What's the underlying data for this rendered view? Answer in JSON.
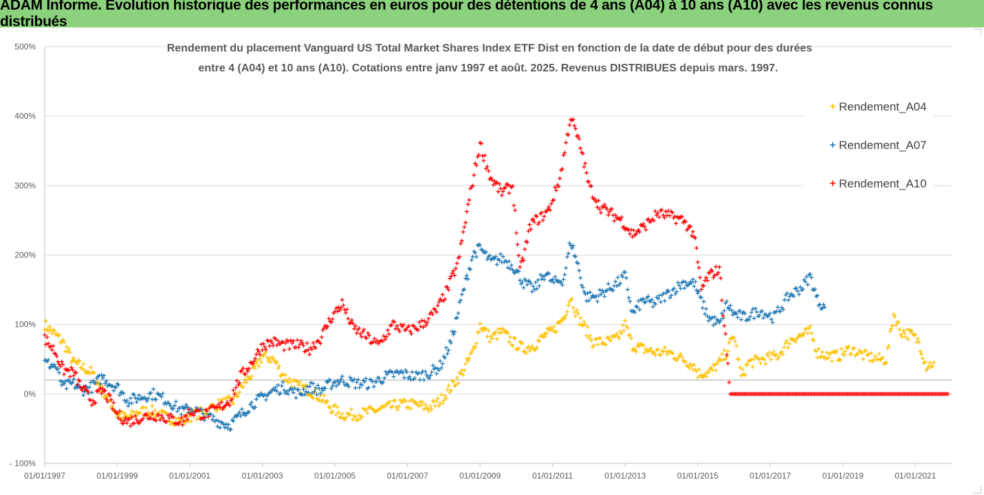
{
  "banner": {
    "title": "ADAM Informe. Evolution historique des performances en euros pour des détentions de 4 ans (A04) à 10 ans (A10) avec les revenus connus distribués"
  },
  "chart_data": {
    "type": "scatter",
    "title_lines": [
      "Rendement du placement Vanguard US Total Market Shares Index ETF Dist en fonction de la date de début pour des durées",
      "entre 4 (A04) et 10 ans (A10). Cotations entre janv 1997 et août. 2025. Revenus DISTRIBUES depuis mars. 1997."
    ],
    "y_ticks": [
      "500%",
      "400%",
      "300%",
      "200%",
      "100%",
      "0%",
      "- 100%"
    ],
    "y_tick_values": [
      500,
      400,
      300,
      200,
      100,
      0,
      -100
    ],
    "ylim": [
      -100,
      500
    ],
    "x_ticks": [
      "01/01/1997",
      "01/01/1999",
      "01/01/2001",
      "01/01/2003",
      "01/01/2005",
      "01/01/2007",
      "01/01/2009",
      "01/01/2011",
      "01/01/2013",
      "01/01/2015",
      "01/01/2017",
      "01/01/2019",
      "01/01/2021"
    ],
    "x_tick_values": [
      1997,
      1999,
      2001,
      2003,
      2005,
      2007,
      2009,
      2011,
      2013,
      2015,
      2017,
      2019,
      2021
    ],
    "xlim": [
      1997,
      2022
    ],
    "reference_line_y": 20,
    "legend_position": "top-right",
    "grid": "horizontal",
    "series": [
      {
        "name": "Rendement_A04",
        "color": "#ffc000",
        "points": [
          [
            1997.0,
            100
          ],
          [
            1997.2,
            90
          ],
          [
            1997.5,
            75
          ],
          [
            1997.8,
            45
          ],
          [
            1998.0,
            40
          ],
          [
            1998.3,
            30
          ],
          [
            1998.6,
            5
          ],
          [
            1998.8,
            -10
          ],
          [
            1999.0,
            -30
          ],
          [
            1999.3,
            -35
          ],
          [
            1999.6,
            -25
          ],
          [
            2000.0,
            -25
          ],
          [
            2000.4,
            -35
          ],
          [
            2000.8,
            -40
          ],
          [
            2001.0,
            -32
          ],
          [
            2001.4,
            -25
          ],
          [
            2001.8,
            -15
          ],
          [
            2002.2,
            -10
          ],
          [
            2002.5,
            15
          ],
          [
            2002.8,
            35
          ],
          [
            2003.0,
            55
          ],
          [
            2003.3,
            50
          ],
          [
            2003.6,
            25
          ],
          [
            2004.0,
            10
          ],
          [
            2004.3,
            5
          ],
          [
            2004.6,
            -5
          ],
          [
            2004.9,
            -20
          ],
          [
            2005.2,
            -30
          ],
          [
            2005.6,
            -30
          ],
          [
            2006.0,
            -25
          ],
          [
            2006.4,
            -20
          ],
          [
            2006.8,
            -15
          ],
          [
            2007.2,
            -15
          ],
          [
            2007.6,
            -20
          ],
          [
            2007.9,
            -10
          ],
          [
            2008.2,
            10
          ],
          [
            2008.5,
            30
          ],
          [
            2008.8,
            60
          ],
          [
            2009.0,
            100
          ],
          [
            2009.3,
            80
          ],
          [
            2009.6,
            90
          ],
          [
            2009.9,
            75
          ],
          [
            2010.2,
            65
          ],
          [
            2010.5,
            70
          ],
          [
            2010.8,
            85
          ],
          [
            2011.0,
            90
          ],
          [
            2011.3,
            110
          ],
          [
            2011.5,
            140
          ],
          [
            2011.7,
            110
          ],
          [
            2011.9,
            95
          ],
          [
            2012.1,
            75
          ],
          [
            2012.5,
            75
          ],
          [
            2012.8,
            80
          ],
          [
            2013.0,
            100
          ],
          [
            2013.2,
            70
          ],
          [
            2013.5,
            65
          ],
          [
            2013.8,
            60
          ],
          [
            2014.2,
            60
          ],
          [
            2014.6,
            50
          ],
          [
            2014.9,
            40
          ],
          [
            2015.0,
            30
          ],
          [
            2015.3,
            30
          ],
          [
            2015.6,
            45
          ],
          [
            2015.8,
            60
          ],
          [
            2016.0,
            85
          ],
          [
            2016.2,
            25
          ],
          [
            2016.4,
            45
          ],
          [
            2016.8,
            50
          ],
          [
            2017.2,
            55
          ],
          [
            2017.6,
            80
          ],
          [
            2017.9,
            85
          ],
          [
            2018.1,
            90
          ],
          [
            2018.3,
            60
          ],
          [
            2018.6,
            55
          ],
          [
            2018.9,
            55
          ],
          [
            2019.2,
            65
          ],
          [
            2019.6,
            55
          ],
          [
            2020.0,
            50
          ],
          [
            2020.2,
            50
          ],
          [
            2020.4,
            115
          ],
          [
            2020.6,
            90
          ],
          [
            2020.9,
            85
          ],
          [
            2021.1,
            75
          ],
          [
            2021.3,
            40
          ],
          [
            2021.5,
            45
          ]
        ]
      },
      {
        "name": "Rendement_A07",
        "color": "#1f77b4",
        "points": [
          [
            1997.0,
            45
          ],
          [
            1997.3,
            40
          ],
          [
            1997.5,
            10
          ],
          [
            1997.8,
            15
          ],
          [
            1998.0,
            5
          ],
          [
            1998.3,
            10
          ],
          [
            1998.6,
            25
          ],
          [
            1998.8,
            15
          ],
          [
            1999.0,
            10
          ],
          [
            1999.3,
            -10
          ],
          [
            1999.6,
            -5
          ],
          [
            2000.0,
            0
          ],
          [
            2000.4,
            -10
          ],
          [
            2000.8,
            -25
          ],
          [
            2001.0,
            -20
          ],
          [
            2001.4,
            -30
          ],
          [
            2001.8,
            -40
          ],
          [
            2002.1,
            -45
          ],
          [
            2002.4,
            -30
          ],
          [
            2002.7,
            -15
          ],
          [
            2003.0,
            -5
          ],
          [
            2003.3,
            5
          ],
          [
            2003.6,
            10
          ],
          [
            2004.0,
            0
          ],
          [
            2004.3,
            10
          ],
          [
            2004.6,
            5
          ],
          [
            2004.9,
            15
          ],
          [
            2005.2,
            20
          ],
          [
            2005.6,
            15
          ],
          [
            2006.0,
            15
          ],
          [
            2006.4,
            25
          ],
          [
            2006.8,
            30
          ],
          [
            2007.2,
            25
          ],
          [
            2007.6,
            30
          ],
          [
            2007.9,
            40
          ],
          [
            2008.2,
            75
          ],
          [
            2008.5,
            140
          ],
          [
            2008.8,
            200
          ],
          [
            2009.0,
            210
          ],
          [
            2009.3,
            190
          ],
          [
            2009.6,
            195
          ],
          [
            2009.9,
            185
          ],
          [
            2010.2,
            160
          ],
          [
            2010.5,
            150
          ],
          [
            2010.8,
            175
          ],
          [
            2011.0,
            160
          ],
          [
            2011.3,
            165
          ],
          [
            2011.5,
            220
          ],
          [
            2011.7,
            185
          ],
          [
            2011.9,
            140
          ],
          [
            2012.2,
            140
          ],
          [
            2012.5,
            150
          ],
          [
            2012.8,
            160
          ],
          [
            2013.0,
            170
          ],
          [
            2013.2,
            115
          ],
          [
            2013.5,
            135
          ],
          [
            2013.8,
            130
          ],
          [
            2014.2,
            145
          ],
          [
            2014.6,
            160
          ],
          [
            2014.9,
            160
          ],
          [
            2015.0,
            145
          ],
          [
            2015.3,
            110
          ],
          [
            2015.6,
            100
          ],
          [
            2015.8,
            130
          ],
          [
            2016.0,
            115
          ],
          [
            2016.3,
            110
          ],
          [
            2016.7,
            120
          ],
          [
            2017.1,
            110
          ],
          [
            2017.5,
            140
          ],
          [
            2017.9,
            155
          ],
          [
            2018.1,
            170
          ],
          [
            2018.3,
            135
          ],
          [
            2018.5,
            125
          ]
        ]
      },
      {
        "name": "Rendement_A10",
        "color": "#ff0000",
        "points": [
          [
            1997.0,
            80
          ],
          [
            1997.3,
            60
          ],
          [
            1997.5,
            35
          ],
          [
            1997.8,
            30
          ],
          [
            1998.0,
            10
          ],
          [
            1998.3,
            -10
          ],
          [
            1998.6,
            5
          ],
          [
            1998.8,
            -10
          ],
          [
            1999.0,
            -30
          ],
          [
            1999.3,
            -40
          ],
          [
            1999.6,
            -35
          ],
          [
            2000.0,
            -30
          ],
          [
            2000.4,
            -35
          ],
          [
            2000.8,
            -40
          ],
          [
            2001.0,
            -25
          ],
          [
            2001.4,
            -30
          ],
          [
            2001.8,
            -20
          ],
          [
            2002.1,
            -10
          ],
          [
            2002.4,
            25
          ],
          [
            2002.7,
            45
          ],
          [
            2003.0,
            70
          ],
          [
            2003.3,
            75
          ],
          [
            2003.6,
            70
          ],
          [
            2004.0,
            70
          ],
          [
            2004.3,
            65
          ],
          [
            2004.6,
            80
          ],
          [
            2004.9,
            110
          ],
          [
            2005.2,
            130
          ],
          [
            2005.5,
            95
          ],
          [
            2005.8,
            85
          ],
          [
            2006.2,
            70
          ],
          [
            2006.6,
            100
          ],
          [
            2007.0,
            90
          ],
          [
            2007.4,
            100
          ],
          [
            2007.8,
            120
          ],
          [
            2008.1,
            150
          ],
          [
            2008.4,
            190
          ],
          [
            2008.7,
            280
          ],
          [
            2009.0,
            360
          ],
          [
            2009.3,
            310
          ],
          [
            2009.6,
            290
          ],
          [
            2009.9,
            300
          ],
          [
            2010.1,
            175
          ],
          [
            2010.4,
            245
          ],
          [
            2010.7,
            255
          ],
          [
            2010.9,
            265
          ],
          [
            2011.2,
            310
          ],
          [
            2011.5,
            400
          ],
          [
            2011.8,
            350
          ],
          [
            2012.0,
            300
          ],
          [
            2012.3,
            270
          ],
          [
            2012.6,
            260
          ],
          [
            2012.9,
            250
          ],
          [
            2013.2,
            230
          ],
          [
            2013.5,
            240
          ],
          [
            2013.9,
            260
          ],
          [
            2014.3,
            255
          ],
          [
            2014.6,
            250
          ],
          [
            2014.9,
            230
          ],
          [
            2015.1,
            150
          ],
          [
            2015.3,
            170
          ],
          [
            2015.6,
            180
          ],
          [
            2015.9,
            0
          ],
          [
            2021.9,
            0
          ]
        ]
      }
    ]
  }
}
